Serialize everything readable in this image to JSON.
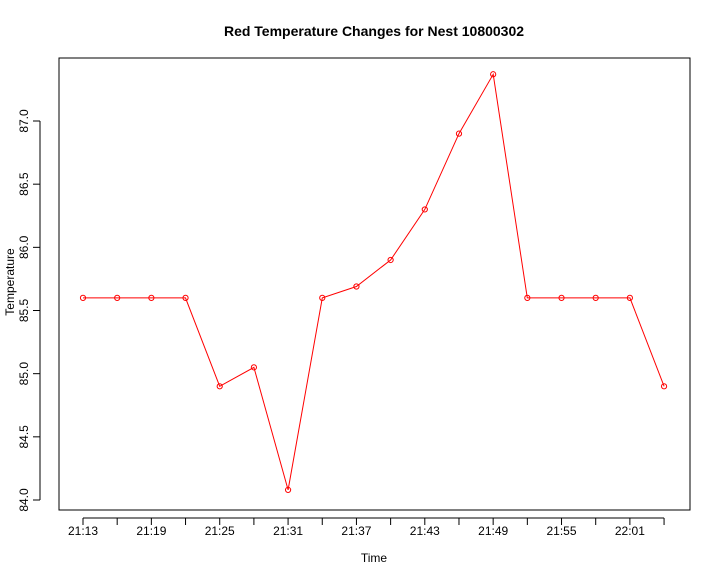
{
  "chart_data": {
    "type": "line",
    "title": "Red Temperature Changes for Nest 10800302",
    "xlabel": "Time",
    "ylabel": "Temperature",
    "x": [
      "21:13",
      "21:16",
      "21:19",
      "21:22",
      "21:25",
      "21:28",
      "21:31",
      "21:34",
      "21:37",
      "21:40",
      "21:43",
      "21:46",
      "21:49",
      "21:52",
      "21:55",
      "21:58",
      "22:01",
      "22:04"
    ],
    "x_tick_labels": [
      "21:13",
      "21:19",
      "21:25",
      "21:31",
      "21:37",
      "21:43",
      "21:49",
      "21:55",
      "22:01"
    ],
    "y_tick_labels": [
      "84.0",
      "84.5",
      "85.0",
      "85.5",
      "86.0",
      "86.5",
      "87.0"
    ],
    "series": [
      {
        "values": [
          85.6,
          85.6,
          85.6,
          85.6,
          84.9,
          85.05,
          84.08,
          85.6,
          85.69,
          85.9,
          86.3,
          86.9,
          87.37,
          85.6,
          85.6,
          85.6,
          85.6,
          84.9
        ],
        "color": "#ff0000",
        "marker": "open-circle"
      }
    ],
    "ylim": [
      84.0,
      87.0
    ],
    "grid": false,
    "legend": "none"
  }
}
